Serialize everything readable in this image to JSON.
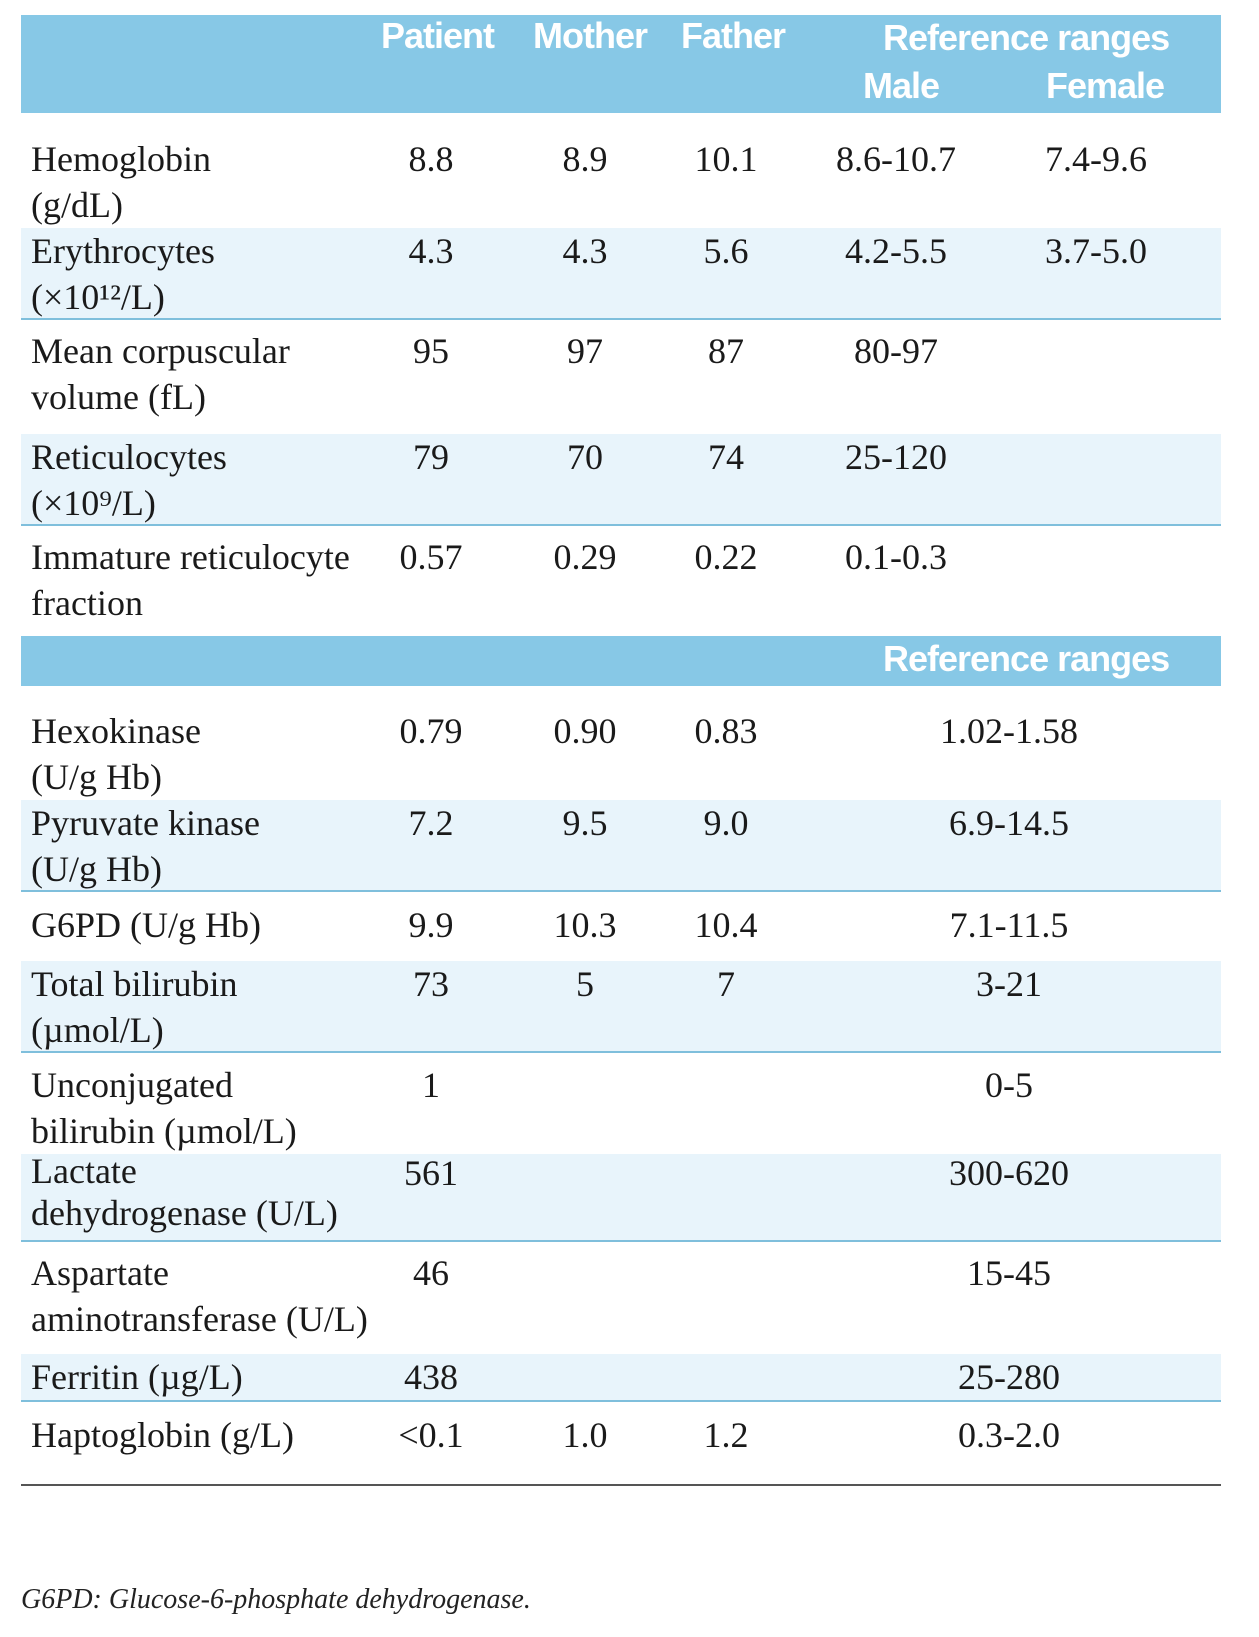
{
  "header": {
    "patient": "Patient",
    "mother": "Mother",
    "father": "Father",
    "ref_ranges": "Reference ranges",
    "male": "Male",
    "female": "Female"
  },
  "section1_rows": [
    {
      "label": "Hemoglobin\n(g/dL)",
      "patient": "8.8",
      "mother": "8.9",
      "father": "10.1",
      "male": "8.6-10.7",
      "female": "7.4-9.6"
    },
    {
      "label": "Erythrocytes\n(×10¹²/L)",
      "patient": "4.3",
      "mother": "4.3",
      "father": "5.6",
      "male": "4.2-5.5",
      "female": "3.7-5.0"
    },
    {
      "label": "Mean corpuscular\nvolume (fL)",
      "patient": "95",
      "mother": "97",
      "father": "87",
      "male": "80-97",
      "female": ""
    },
    {
      "label": "Reticulocytes\n(×10⁹/L)",
      "patient": "79",
      "mother": "70",
      "father": "74",
      "male": "25-120",
      "female": ""
    },
    {
      "label": "Immature reticulocyte\nfraction",
      "patient": "0.57",
      "mother": "0.29",
      "father": "0.22",
      "male": "0.1-0.3",
      "female": ""
    }
  ],
  "header2": {
    "ref_ranges": "Reference ranges"
  },
  "section2_rows": [
    {
      "label": "Hexokinase\n(U/g Hb)",
      "patient": "0.79",
      "mother": "0.90",
      "father": "0.83",
      "ref": "1.02-1.58"
    },
    {
      "label": "Pyruvate kinase\n(U/g Hb)",
      "patient": "7.2",
      "mother": "9.5",
      "father": "9.0",
      "ref": "6.9-14.5"
    },
    {
      "label": "G6PD (U/g Hb)",
      "patient": "9.9",
      "mother": "10.3",
      "father": "10.4",
      "ref": "7.1-11.5"
    },
    {
      "label": "Total bilirubin\n(µmol/L)",
      "patient": "73",
      "mother": "5",
      "father": "7",
      "ref": "3-21"
    },
    {
      "label": "Unconjugated\nbilirubin (µmol/L)",
      "patient": "1",
      "mother": "",
      "father": "",
      "ref": "0-5"
    },
    {
      "label": "Lactate\ndehydrogenase (U/L)",
      "patient": "561",
      "mother": "",
      "father": "",
      "ref": "300-620"
    },
    {
      "label": "Aspartate\naminotransferase (U/L)",
      "patient": "46",
      "mother": "",
      "father": "",
      "ref": "15-45"
    },
    {
      "label": "Ferritin (µg/L)",
      "patient": "438",
      "mother": "",
      "father": "",
      "ref": "25-280"
    },
    {
      "label": "Haptoglobin (g/L)",
      "patient": "<0.1",
      "mother": "1.0",
      "father": "1.2",
      "ref": "0.3-2.0"
    }
  ],
  "footnote": "G6PD: Glucose-6-phosphate dehydrogenase."
}
